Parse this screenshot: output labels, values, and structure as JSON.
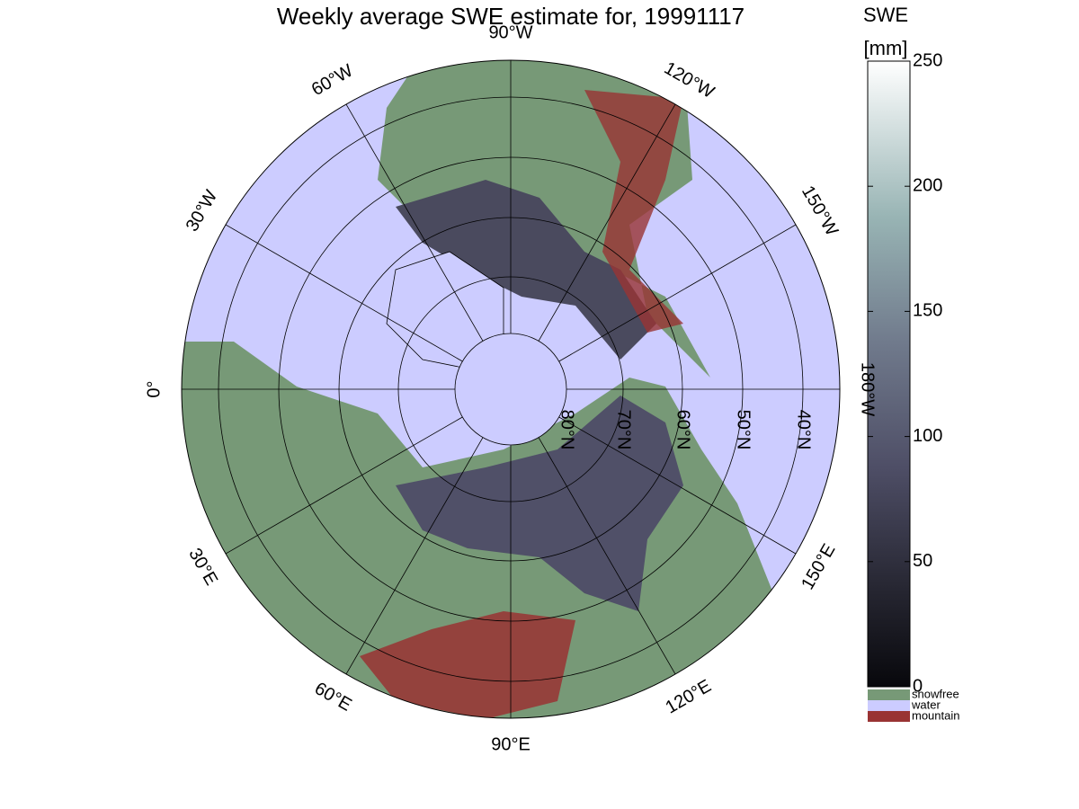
{
  "title": "Weekly average SWE estimate for, 19991117",
  "longitude_labels": [
    "90°W",
    "120°W",
    "150°W",
    "180°W",
    "150°E",
    "120°E",
    "90°E",
    "60°E",
    "30°E",
    "0°",
    "30°W",
    "60°W"
  ],
  "latitude_labels": [
    "80°N",
    "70°N",
    "60°N",
    "50°N",
    "40°N"
  ],
  "colorbar": {
    "title": "SWE",
    "unit": "[mm]",
    "range": [
      0,
      250
    ],
    "ticks": [
      0,
      50,
      100,
      150,
      200,
      250
    ]
  },
  "legend": [
    {
      "name": "snowfree",
      "color": "#779977"
    },
    {
      "name": "water",
      "color": "#ccccff"
    },
    {
      "name": "mountain",
      "color": "#993333"
    }
  ]
}
